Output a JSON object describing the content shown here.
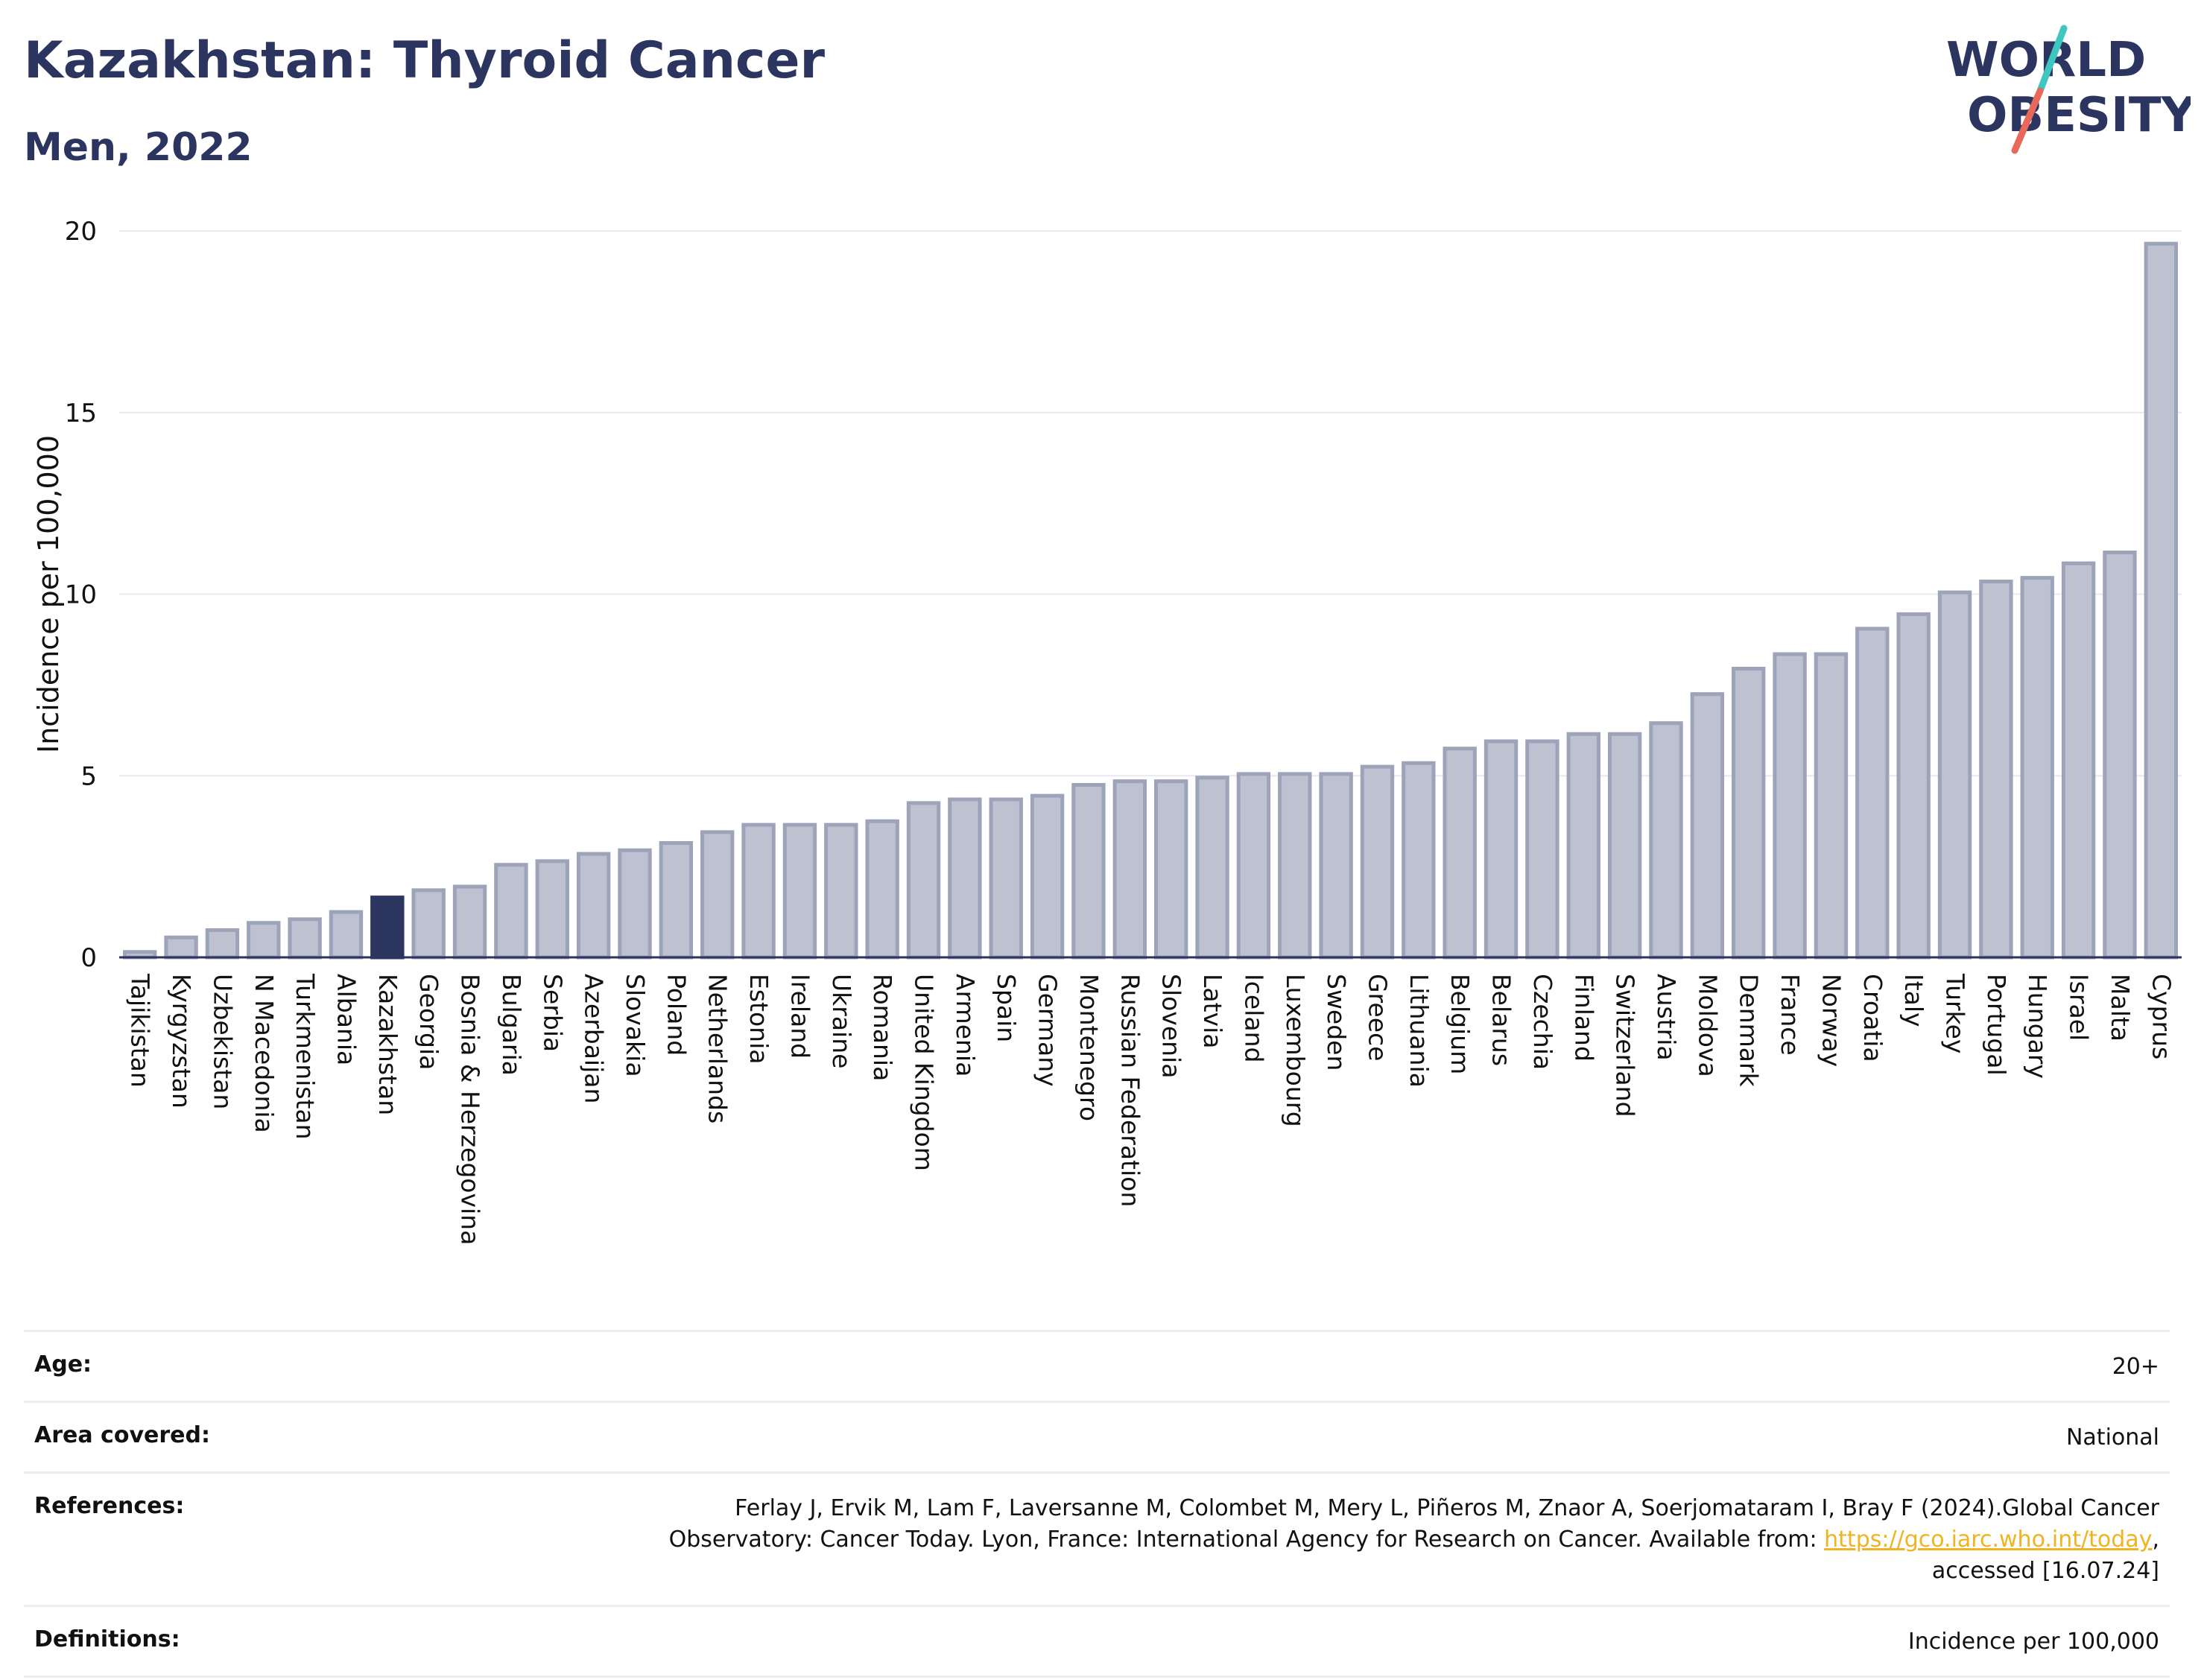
{
  "header": {
    "title": "Kazakhstan: Thyroid Cancer",
    "subtitle": "Men, 2022"
  },
  "logo": {
    "line1": "WORLD",
    "line2": "OBESITY",
    "colors": {
      "text": "#2b3560",
      "slash_top": "#3ec6c0",
      "slash_bottom": "#e8685a"
    }
  },
  "chart_data": {
    "type": "bar",
    "ylabel": "Incidence per 100,000",
    "ylim": [
      0,
      20
    ],
    "yticks": [
      0,
      5,
      10,
      15,
      20
    ],
    "grid": true,
    "highlight": "Kazakhstan",
    "colors": {
      "bar": "#bdc1d0",
      "bar_border": "#9da3b9",
      "highlight": "#2b3560",
      "grid": "#e8e8ee",
      "axis": "#2b3560"
    },
    "categories": [
      "Tajikistan",
      "Kyrgyzstan",
      "Uzbekistan",
      "N Macedonia",
      "Turkmenistan",
      "Albania",
      "Kazakhstan",
      "Georgia",
      "Bosnia & Herzegovina",
      "Bulgaria",
      "Serbia",
      "Azerbaijan",
      "Slovakia",
      "Poland",
      "Netherlands",
      "Estonia",
      "Ireland",
      "Ukraine",
      "Romania",
      "United Kingdom",
      "Armenia",
      "Spain",
      "Germany",
      "Montenegro",
      "Russian Federation",
      "Slovenia",
      "Latvia",
      "Iceland",
      "Luxembourg",
      "Sweden",
      "Greece",
      "Lithuania",
      "Belgium",
      "Belarus",
      "Czechia",
      "Finland",
      "Switzerland",
      "Austria",
      "Moldova",
      "Denmark",
      "France",
      "Norway",
      "Croatia",
      "Italy",
      "Turkey",
      "Portugal",
      "Hungary",
      "Israel",
      "Malta",
      "Cyprus"
    ],
    "values": [
      0.2,
      0.6,
      0.8,
      1.0,
      1.1,
      1.3,
      1.7,
      1.9,
      2.0,
      2.6,
      2.7,
      2.9,
      3.0,
      3.2,
      3.5,
      3.7,
      3.7,
      3.7,
      3.8,
      4.3,
      4.4,
      4.4,
      4.5,
      4.8,
      4.9,
      4.9,
      5.0,
      5.1,
      5.1,
      5.1,
      5.3,
      5.4,
      5.8,
      6.0,
      6.0,
      6.2,
      6.2,
      6.5,
      7.3,
      8.0,
      8.4,
      8.4,
      9.1,
      9.5,
      10.1,
      10.4,
      10.5,
      10.9,
      11.2,
      19.7
    ]
  },
  "info": {
    "age_label": "Age:",
    "age_value": "20+",
    "area_label": "Area covered:",
    "area_value": "National",
    "references_label": "References:",
    "references_line1": "Ferlay J, Ervik M, Lam F, Laversanne M, Colombet M, Mery L, Piñeros M, Znaor A, Soerjomataram I, Bray F (2024).Global Cancer",
    "references_line2": "Observatory: Cancer Today. Lyon, France: International Agency for Research on Cancer. Available from: ",
    "references_link": "https://gco.iarc.who.int/today",
    "references_line3": "accessed [16.07.24]",
    "definitions_label": "Definitions:",
    "definitions_value": "Incidence per 100,000"
  }
}
